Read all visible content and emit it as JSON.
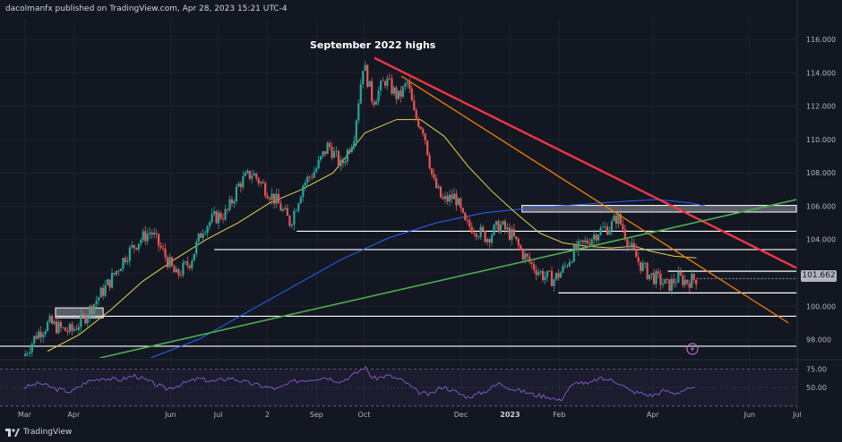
{
  "header": {
    "publisher_text": "dacolmanfx published on TradingView.com, Apr 28, 2023 15:21 UTC-4"
  },
  "footer": {
    "brand": "TradingView",
    "brand_icon": "tradingview-logo-icon"
  },
  "price_tag": {
    "value": "101.662"
  },
  "colors": {
    "background": "#131722",
    "up_candle": "#26a69a",
    "down_candle": "#ef5350",
    "ma_short": "#e6d34a",
    "ma_long": "#2962ff",
    "downtrend_major": "#f23645",
    "downtrend_minor": "#f57c00",
    "uptrend": "#4caf50",
    "levels": "#ffffff",
    "rsi": "#7e57c2"
  },
  "chart_data": {
    "type": "candlestick",
    "title": "September 2022 highs",
    "y_ticks": [
      "116.000",
      "114.000",
      "112.000",
      "110.000",
      "108.000",
      "106.000",
      "104.000",
      "102.000",
      "100.000",
      "98.000"
    ],
    "ylim": [
      96.9,
      117.3
    ],
    "x_ticks": [
      {
        "label": "Mar",
        "t": 0.5
      },
      {
        "label": "Apr",
        "t": 31.5
      },
      {
        "label": "Jun",
        "t": 92.5
      },
      {
        "label": "Jul",
        "t": 122.5
      },
      {
        "label": "2",
        "t": 153.5
      },
      {
        "label": "Sep",
        "t": 184.5
      },
      {
        "label": "Oct",
        "t": 214.5
      },
      {
        "label": "Dec",
        "t": 275.5
      },
      {
        "label": "2023",
        "t": 306.5
      },
      {
        "label": "Feb",
        "t": 337.5
      },
      {
        "label": "Apr",
        "t": 396.5
      },
      {
        "label": "Jun",
        "t": 457.5
      },
      {
        "label": "Jul",
        "t": 487.5
      }
    ],
    "xlim": [
      -15,
      487.5
    ],
    "close_path": [
      [
        0,
        97.0
      ],
      [
        8,
        98.3
      ],
      [
        16,
        99.0
      ],
      [
        24,
        98.6
      ],
      [
        30,
        98.5
      ],
      [
        38,
        99.3
      ],
      [
        46,
        100.4
      ],
      [
        55,
        101.6
      ],
      [
        64,
        103.0
      ],
      [
        72,
        103.9
      ],
      [
        80,
        104.5
      ],
      [
        88,
        103.2
      ],
      [
        96,
        101.8
      ],
      [
        105,
        102.7
      ],
      [
        113,
        104.7
      ],
      [
        120,
        105.3
      ],
      [
        128,
        105.6
      ],
      [
        136,
        107.4
      ],
      [
        144,
        108.0
      ],
      [
        152,
        107.1
      ],
      [
        160,
        106.2
      ],
      [
        168,
        105.0
      ],
      [
        176,
        107.3
      ],
      [
        184,
        108.2
      ],
      [
        192,
        109.7
      ],
      [
        200,
        108.4
      ],
      [
        208,
        110.2
      ],
      [
        214,
        114.6
      ],
      [
        220,
        112.3
      ],
      [
        228,
        113.6
      ],
      [
        236,
        112.5
      ],
      [
        242,
        113.4
      ],
      [
        246,
        111.5
      ],
      [
        252,
        110.6
      ],
      [
        258,
        107.5
      ],
      [
        264,
        106.3
      ],
      [
        272,
        106.6
      ],
      [
        278,
        104.9
      ],
      [
        284,
        104.7
      ],
      [
        292,
        104.1
      ],
      [
        300,
        104.9
      ],
      [
        308,
        104.2
      ],
      [
        314,
        103.2
      ],
      [
        320,
        102.5
      ],
      [
        328,
        101.8
      ],
      [
        334,
        101.6
      ],
      [
        340,
        102.2
      ],
      [
        346,
        103.2
      ],
      [
        354,
        103.8
      ],
      [
        362,
        104.5
      ],
      [
        370,
        104.8
      ],
      [
        374,
        105.4
      ],
      [
        378,
        104.6
      ],
      [
        382,
        103.6
      ],
      [
        388,
        102.6
      ],
      [
        394,
        101.9
      ],
      [
        400,
        101.6
      ],
      [
        406,
        101.2
      ],
      [
        412,
        101.7
      ],
      [
        418,
        101.5
      ],
      [
        424,
        101.66
      ]
    ],
    "ma_short": [
      [
        15,
        97.3
      ],
      [
        35,
        98.3
      ],
      [
        55,
        99.8
      ],
      [
        75,
        101.5
      ],
      [
        95,
        102.8
      ],
      [
        115,
        104.0
      ],
      [
        135,
        105.0
      ],
      [
        155,
        106.2
      ],
      [
        175,
        107.0
      ],
      [
        195,
        108.0
      ],
      [
        215,
        110.4
      ],
      [
        235,
        111.2
      ],
      [
        250,
        111.2
      ],
      [
        265,
        110.2
      ],
      [
        280,
        108.4
      ],
      [
        295,
        106.9
      ],
      [
        310,
        105.6
      ],
      [
        325,
        104.4
      ],
      [
        340,
        103.8
      ],
      [
        355,
        103.6
      ],
      [
        370,
        103.5
      ],
      [
        385,
        103.6
      ],
      [
        395,
        103.3
      ],
      [
        410,
        103.0
      ],
      [
        424,
        102.9
      ]
    ],
    "ma_long": [
      [
        80,
        96.9
      ],
      [
        110,
        98.0
      ],
      [
        140,
        99.6
      ],
      [
        170,
        101.2
      ],
      [
        200,
        102.8
      ],
      [
        230,
        104.1
      ],
      [
        260,
        105.0
      ],
      [
        290,
        105.6
      ],
      [
        320,
        105.9
      ],
      [
        350,
        106.1
      ],
      [
        380,
        106.3
      ],
      [
        400,
        106.4
      ],
      [
        420,
        106.2
      ],
      [
        430,
        106.0
      ]
    ],
    "trendlines": [
      {
        "name": "downtrend-major",
        "from": [
          221,
          114.9
        ],
        "to": [
          487,
          102.3
        ]
      },
      {
        "name": "downtrend-minor",
        "from": [
          238,
          113.8
        ],
        "to": [
          482,
          99.0
        ]
      },
      {
        "name": "uptrend",
        "from": [
          48,
          96.9
        ],
        "to": [
          487,
          106.4
        ]
      }
    ],
    "horizontal_levels": [
      {
        "y": 104.5,
        "from": 172,
        "to": 487
      },
      {
        "y": 103.4,
        "from": 120,
        "to": 487
      },
      {
        "y": 102.1,
        "from": 406,
        "to": 487
      },
      {
        "y": 100.8,
        "from": 337,
        "to": 487
      },
      {
        "y": 99.4,
        "from": 20,
        "to": 487
      },
      {
        "y": 97.6,
        "from": -15,
        "to": 487
      }
    ],
    "resistance_zones": [
      {
        "y1": 106.05,
        "y2": 105.65,
        "from": 314,
        "to": 487
      },
      {
        "y1": 99.9,
        "y2": 99.3,
        "from": 20,
        "to": 50
      }
    ],
    "rsi": {
      "levels": [
        "75.00",
        "50.00"
      ],
      "ylim": [
        20,
        85
      ],
      "values": [
        [
          0,
          50
        ],
        [
          10,
          56
        ],
        [
          20,
          48
        ],
        [
          30,
          44
        ],
        [
          40,
          58
        ],
        [
          50,
          63
        ],
        [
          60,
          60
        ],
        [
          70,
          66
        ],
        [
          80,
          57
        ],
        [
          90,
          48
        ],
        [
          100,
          55
        ],
        [
          110,
          62
        ],
        [
          120,
          58
        ],
        [
          130,
          63
        ],
        [
          140,
          57
        ],
        [
          150,
          52
        ],
        [
          160,
          48
        ],
        [
          170,
          58
        ],
        [
          180,
          61
        ],
        [
          190,
          64
        ],
        [
          200,
          58
        ],
        [
          210,
          70
        ],
        [
          215,
          78
        ],
        [
          220,
          62
        ],
        [
          230,
          66
        ],
        [
          240,
          58
        ],
        [
          248,
          44
        ],
        [
          256,
          40
        ],
        [
          264,
          52
        ],
        [
          272,
          44
        ],
        [
          280,
          37
        ],
        [
          290,
          44
        ],
        [
          300,
          56
        ],
        [
          308,
          48
        ],
        [
          316,
          44
        ],
        [
          322,
          40
        ],
        [
          330,
          38
        ],
        [
          338,
          32
        ],
        [
          344,
          50
        ],
        [
          350,
          58
        ],
        [
          356,
          54
        ],
        [
          362,
          62
        ],
        [
          370,
          60
        ],
        [
          376,
          56
        ],
        [
          382,
          45
        ],
        [
          390,
          42
        ],
        [
          396,
          39
        ],
        [
          404,
          46
        ],
        [
          410,
          42
        ],
        [
          418,
          48
        ],
        [
          424,
          47
        ]
      ]
    }
  }
}
